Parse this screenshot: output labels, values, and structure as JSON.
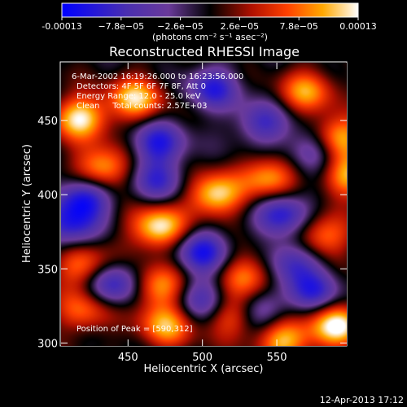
{
  "chart_data": {
    "type": "heatmap",
    "title": "Reconstructed RHESSI Image",
    "xlabel": "Heliocentric X (arcsec)",
    "ylabel": "Heliocentric Y (arcsec)",
    "xlim": [
      405,
      597
    ],
    "ylim": [
      298,
      489
    ],
    "x_ticks": [
      450,
      500,
      550
    ],
    "y_ticks": [
      300,
      350,
      400,
      450
    ],
    "x_tick_labels": [
      "450",
      "500",
      "550"
    ],
    "y_tick_labels": [
      "300",
      "350",
      "400",
      "450"
    ],
    "colorbar": {
      "range": [
        -0.00013,
        0.00013
      ],
      "tick_values": [
        -0.00013,
        -7.8e-05,
        -2.6e-05,
        2.6e-05,
        7.8e-05,
        0.00013
      ],
      "tick_labels": [
        "-0.00013",
        "−7.8e−05",
        "−2.6e−05",
        "2.6e−05",
        "7.8e−05",
        "0.00013"
      ],
      "unit_label": "(photons cm⁻² s⁻¹ asec⁻²)",
      "colors": [
        "#0000ff",
        "#4a2fb0",
        "#6a3a9a",
        "#000000",
        "#b01000",
        "#ff4000",
        "#ffa800",
        "#ffffff"
      ]
    },
    "annotations": [
      "6-Mar-2002 16:19:26.000 to 16:23:56.000",
      "Detectors: 4F 5F 6F 7F 8F, Att 0",
      "Energy Range: 12.0 - 25.0 keV",
      "Clean     Total counts: 2.57E+03"
    ],
    "peak_text": "Position of Peak = [590,312]",
    "peak": {
      "x": 590,
      "y": 312
    },
    "sources": [
      {
        "x": 418,
        "y": 452,
        "v": 0.95
      },
      {
        "x": 455,
        "y": 465,
        "v": 0.85
      },
      {
        "x": 570,
        "y": 470,
        "v": 0.7
      },
      {
        "x": 590,
        "y": 438,
        "v": 0.95
      },
      {
        "x": 432,
        "y": 418,
        "v": 0.85
      },
      {
        "x": 545,
        "y": 412,
        "v": 0.8
      },
      {
        "x": 597,
        "y": 412,
        "v": 0.75
      },
      {
        "x": 508,
        "y": 400,
        "v": 0.95
      },
      {
        "x": 470,
        "y": 378,
        "v": 1.0
      },
      {
        "x": 580,
        "y": 372,
        "v": 0.7
      },
      {
        "x": 470,
        "y": 338,
        "v": 0.75
      },
      {
        "x": 530,
        "y": 345,
        "v": 0.75
      },
      {
        "x": 420,
        "y": 352,
        "v": 0.7
      },
      {
        "x": 420,
        "y": 322,
        "v": 0.6
      },
      {
        "x": 475,
        "y": 312,
        "v": 0.75
      },
      {
        "x": 555,
        "y": 303,
        "v": 0.85
      },
      {
        "x": 590,
        "y": 312,
        "v": 1.0
      },
      {
        "x": 520,
        "y": 318,
        "v": 0.6
      },
      {
        "x": 507,
        "y": 472,
        "v": -0.7
      },
      {
        "x": 540,
        "y": 448,
        "v": -0.6
      },
      {
        "x": 470,
        "y": 435,
        "v": -0.75
      },
      {
        "x": 575,
        "y": 430,
        "v": -0.7
      },
      {
        "x": 420,
        "y": 398,
        "v": -0.9
      },
      {
        "x": 470,
        "y": 410,
        "v": -0.6
      },
      {
        "x": 555,
        "y": 388,
        "v": -0.8
      },
      {
        "x": 410,
        "y": 378,
        "v": -0.7
      },
      {
        "x": 500,
        "y": 362,
        "v": -0.8
      },
      {
        "x": 500,
        "y": 330,
        "v": -0.6
      },
      {
        "x": 440,
        "y": 340,
        "v": -0.8
      },
      {
        "x": 560,
        "y": 355,
        "v": -0.7
      },
      {
        "x": 575,
        "y": 335,
        "v": -0.65
      },
      {
        "x": 540,
        "y": 322,
        "v": -0.55
      }
    ]
  },
  "footer": {
    "date": "12-Apr-2013 17:12"
  }
}
